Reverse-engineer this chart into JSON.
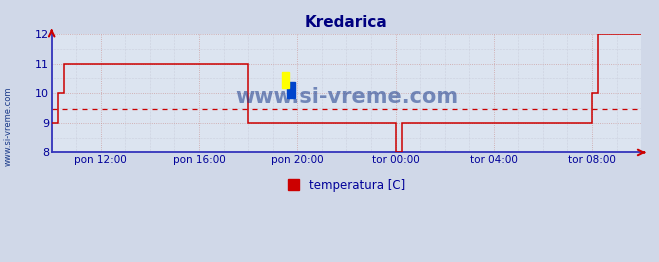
{
  "title": "Kredarica",
  "ylim": [
    8,
    12
  ],
  "yticks": [
    8,
    9,
    10,
    11,
    12
  ],
  "x_labels": [
    "pon 12:00",
    "pon 16:00",
    "pon 20:00",
    "tor 00:00",
    "tor 04:00",
    "tor 08:00"
  ],
  "x_tick_positions": [
    120,
    360,
    600,
    840,
    1080,
    1320
  ],
  "x_min": 0,
  "x_max": 1440,
  "avg_line": 9.46,
  "line_color": "#cc0000",
  "bg_color": "#d0d8e8",
  "plot_bg_color": "#dce4f0",
  "title_color": "#000080",
  "tick_label_color": "#000099",
  "watermark_text": "www.si-vreme.com",
  "legend_label": "temperatura [C]",
  "legend_color": "#cc0000",
  "watermark_color": "#1a3a8a",
  "side_label": "www.si-vreme.com",
  "side_label_color": "#1a3a8a",
  "data_x": [
    0,
    15,
    15,
    30,
    30,
    90,
    90,
    480,
    480,
    600,
    600,
    840,
    840,
    855,
    855,
    870,
    870,
    960,
    960,
    975,
    975,
    1080,
    1080,
    1095,
    1095,
    1110,
    1110,
    1320,
    1320,
    1335,
    1335,
    1360,
    1360,
    1440
  ],
  "data_y": [
    9,
    9,
    10,
    10,
    11,
    11,
    11,
    11,
    9,
    9,
    9,
    9,
    8,
    8,
    9,
    9,
    9,
    9,
    9,
    9,
    9,
    9,
    9,
    9,
    9,
    9,
    9,
    9,
    10,
    10,
    12,
    12,
    12,
    12
  ],
  "grid_major_color": "#cc9999",
  "grid_minor_color": "#bbbbcc"
}
